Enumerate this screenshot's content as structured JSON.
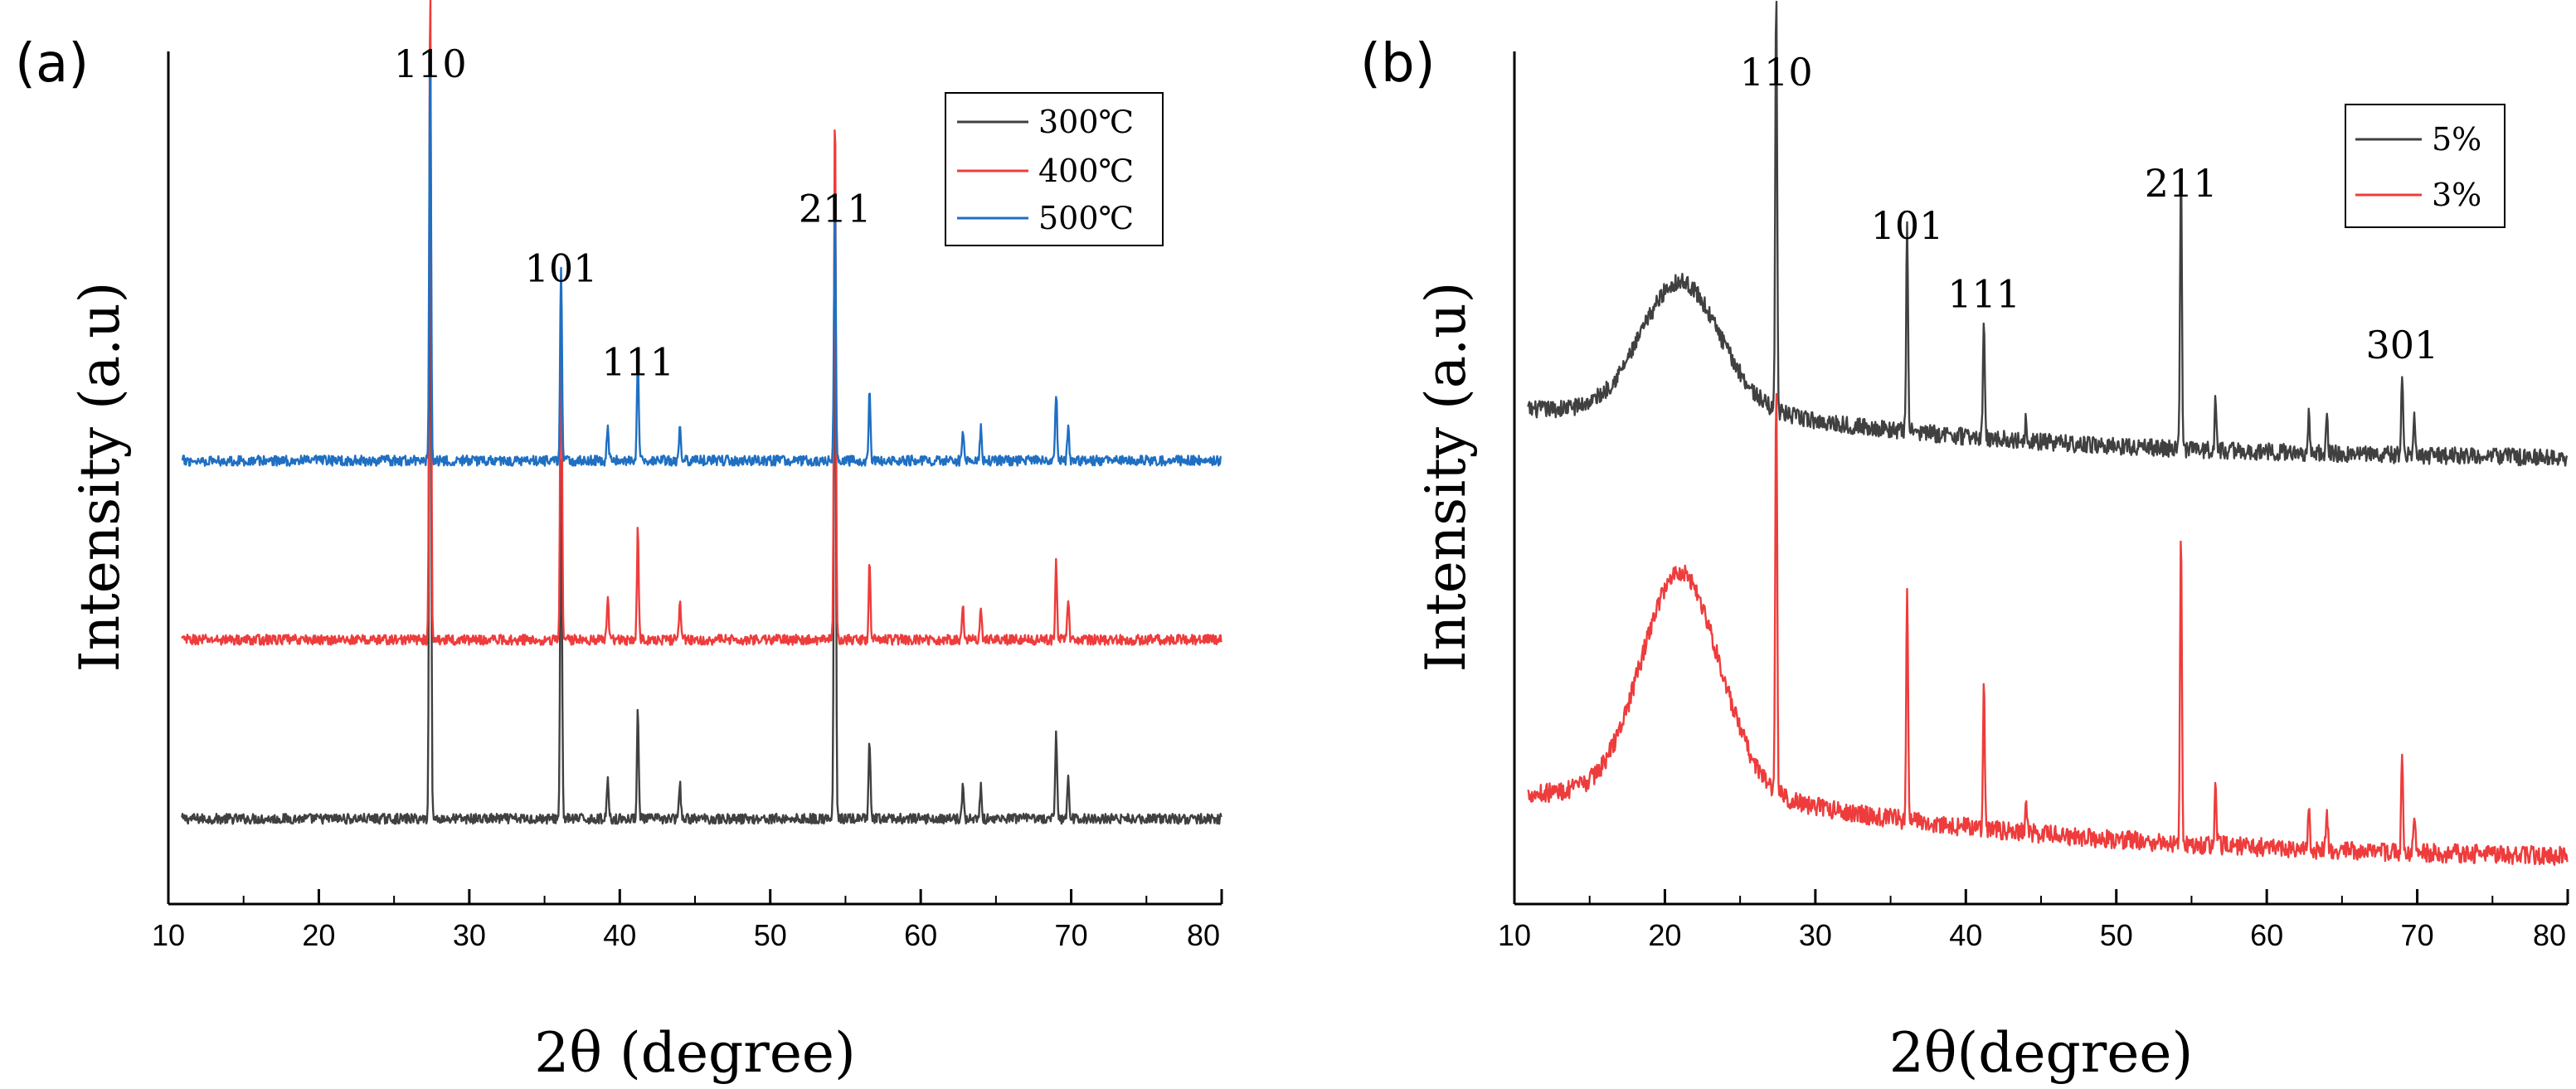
{
  "chart_data": [
    {
      "type": "line",
      "panel_label": "(a)",
      "xlabel": "2θ (degree)",
      "ylabel": "Intensity (a.u)",
      "xlim": [
        10,
        80
      ],
      "xticks": [
        10,
        20,
        30,
        40,
        50,
        60,
        70,
        80
      ],
      "xtick_labels": [
        "10",
        "20",
        "30",
        "40",
        "50",
        "60",
        "70",
        "80"
      ],
      "legend": {
        "position": "top-right"
      },
      "series": [
        {
          "name": "300℃",
          "color": "#404040",
          "offset": 0.1,
          "noise": 0.006,
          "hump": null,
          "peaks": [
            [
              27.4,
              0.86
            ],
            [
              36.1,
              0.42
            ],
            [
              39.2,
              0.05
            ],
            [
              41.2,
              0.13
            ],
            [
              44.0,
              0.04
            ],
            [
              54.3,
              0.77
            ],
            [
              56.6,
              0.09
            ],
            [
              62.8,
              0.04
            ],
            [
              64.0,
              0.04
            ],
            [
              69.0,
              0.1
            ],
            [
              69.8,
              0.05
            ]
          ]
        },
        {
          "name": "400℃",
          "color": "#ee3c3c",
          "offset": 0.31,
          "noise": 0.006,
          "hump": null,
          "peaks": [
            [
              27.4,
              0.77
            ],
            [
              36.1,
              0.42
            ],
            [
              39.2,
              0.05
            ],
            [
              41.2,
              0.13
            ],
            [
              44.0,
              0.05
            ],
            [
              54.3,
              0.63
            ],
            [
              56.6,
              0.09
            ],
            [
              62.8,
              0.04
            ],
            [
              64.0,
              0.04
            ],
            [
              69.0,
              0.09
            ],
            [
              69.8,
              0.05
            ]
          ]
        },
        {
          "name": "500℃",
          "color": "#1f6fc2",
          "offset": 0.52,
          "noise": 0.006,
          "hump": null,
          "peaks": [
            [
              27.4,
              0.48
            ],
            [
              36.1,
              0.23
            ],
            [
              39.2,
              0.04
            ],
            [
              41.2,
              0.12
            ],
            [
              44.0,
              0.04
            ],
            [
              54.3,
              0.3
            ],
            [
              56.6,
              0.08
            ],
            [
              62.8,
              0.04
            ],
            [
              64.0,
              0.04
            ],
            [
              69.0,
              0.08
            ],
            [
              69.8,
              0.04
            ]
          ]
        }
      ],
      "annotations": [
        {
          "text": "110",
          "x": 27.4,
          "level": 0.97
        },
        {
          "text": "101",
          "x": 36.1,
          "level": 0.73
        },
        {
          "text": "111",
          "x": 41.2,
          "level": 0.62
        },
        {
          "text": "211",
          "x": 54.3,
          "level": 0.8
        }
      ]
    },
    {
      "type": "line",
      "panel_label": "(b)",
      "xlabel": "2θ(degree)",
      "ylabel": "Intensity (a.u)",
      "xlim": [
        10,
        80
      ],
      "xticks": [
        10,
        20,
        30,
        40,
        50,
        60,
        70,
        80
      ],
      "xtick_labels": [
        "10",
        "20",
        "30",
        "40",
        "50",
        "60",
        "70",
        "80"
      ],
      "legend": {
        "position": "top-right"
      },
      "series": [
        {
          "name": "5%",
          "color": "#404040",
          "offset": 0.52,
          "noise": 0.01,
          "hump": {
            "center": 21,
            "width": 3.6,
            "height": 0.15,
            "decay_start": 25,
            "tail": 0.06,
            "tail_decay": 20
          },
          "peaks": [
            [
              27.4,
              0.5
            ],
            [
              36.1,
              0.25
            ],
            [
              41.2,
              0.14
            ],
            [
              44.0,
              0.03
            ],
            [
              54.3,
              0.33
            ],
            [
              56.6,
              0.06
            ],
            [
              62.8,
              0.05
            ],
            [
              64.0,
              0.04
            ],
            [
              69.0,
              0.1
            ],
            [
              69.8,
              0.05
            ]
          ]
        },
        {
          "name": "3%",
          "color": "#ee3c3c",
          "offset": 0.05,
          "noise": 0.011,
          "hump": {
            "center": 21,
            "width": 3.6,
            "height": 0.26,
            "decay_start": 25,
            "tail": 0.08,
            "tail_decay": 22
          },
          "peaks": [
            [
              27.4,
              0.49
            ],
            [
              36.1,
              0.27
            ],
            [
              41.2,
              0.17
            ],
            [
              44.0,
              0.04
            ],
            [
              54.3,
              0.37
            ],
            [
              56.6,
              0.07
            ],
            [
              62.8,
              0.05
            ],
            [
              64.0,
              0.05
            ],
            [
              69.0,
              0.12
            ],
            [
              69.8,
              0.05
            ]
          ]
        }
      ],
      "annotations": [
        {
          "text": "110",
          "x": 27.4,
          "level": 0.96
        },
        {
          "text": "101",
          "x": 36.1,
          "level": 0.78
        },
        {
          "text": "111",
          "x": 41.2,
          "level": 0.7
        },
        {
          "text": "211",
          "x": 54.3,
          "level": 0.83
        },
        {
          "text": "301",
          "x": 69.0,
          "level": 0.64
        }
      ]
    }
  ]
}
